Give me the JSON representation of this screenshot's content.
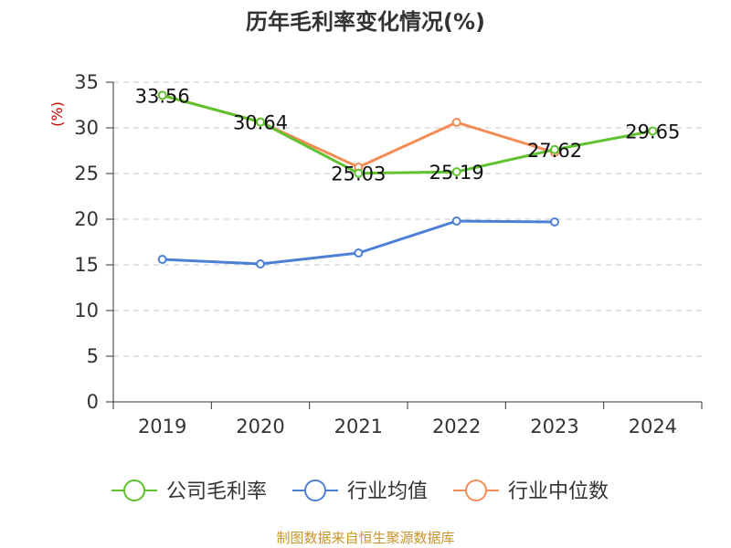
{
  "chart_data": {
    "type": "line",
    "title": "历年毛利率变化情况(%)",
    "ylabel": "(%)",
    "xlabel": "",
    "categories": [
      "2019",
      "2020",
      "2021",
      "2022",
      "2023",
      "2024"
    ],
    "yticks": [
      "0",
      "5",
      "10",
      "15",
      "20",
      "25",
      "30",
      "35"
    ],
    "ylim": [
      0,
      35
    ],
    "grid": true,
    "legend_position": "bottom",
    "series": [
      {
        "name": "公司毛利率",
        "color": "#5fc22e",
        "values": [
          33.56,
          30.64,
          25.03,
          25.19,
          27.62,
          29.65
        ],
        "labels": [
          "33.56",
          "30.64",
          "25.03",
          "25.19",
          "27.62",
          "29.65"
        ]
      },
      {
        "name": "行业均值",
        "color": "#4e7fd6",
        "values": [
          15.6,
          15.1,
          16.3,
          19.8,
          19.7,
          null
        ]
      },
      {
        "name": "行业中位数",
        "color": "#f58c55",
        "values": [
          33.56,
          30.64,
          25.7,
          30.6,
          27.3,
          null
        ]
      }
    ]
  },
  "footer": {
    "source": "制图数据来自恒生聚源数据库"
  }
}
